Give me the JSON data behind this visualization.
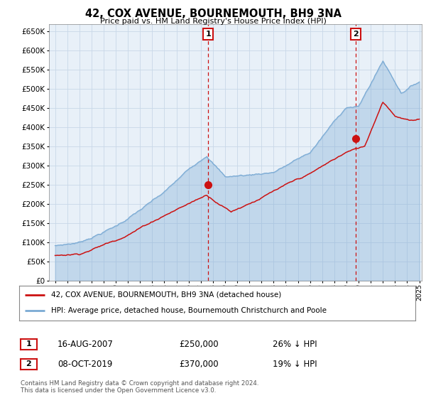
{
  "title": "42, COX AVENUE, BOURNEMOUTH, BH9 3NA",
  "subtitle": "Price paid vs. HM Land Registry's House Price Index (HPI)",
  "ytick_values": [
    0,
    50000,
    100000,
    150000,
    200000,
    250000,
    300000,
    350000,
    400000,
    450000,
    500000,
    550000,
    600000,
    650000
  ],
  "xlim_start": 1994.5,
  "xlim_end": 2025.2,
  "ylim_min": 0,
  "ylim_max": 670000,
  "hpi_color": "#7aaad4",
  "hpi_fill": "#dce9f5",
  "price_color": "#cc1111",
  "marker1_date": 2007.62,
  "marker1_price": 250000,
  "marker2_date": 2019.77,
  "marker2_price": 370000,
  "legend_line1": "42, COX AVENUE, BOURNEMOUTH, BH9 3NA (detached house)",
  "legend_line2": "HPI: Average price, detached house, Bournemouth Christchurch and Poole",
  "footer": "Contains HM Land Registry data © Crown copyright and database right 2024.\nThis data is licensed under the Open Government Licence v3.0.",
  "background_color": "#ffffff",
  "grid_color": "#c8d8e8",
  "chart_bg": "#e8f0f8"
}
